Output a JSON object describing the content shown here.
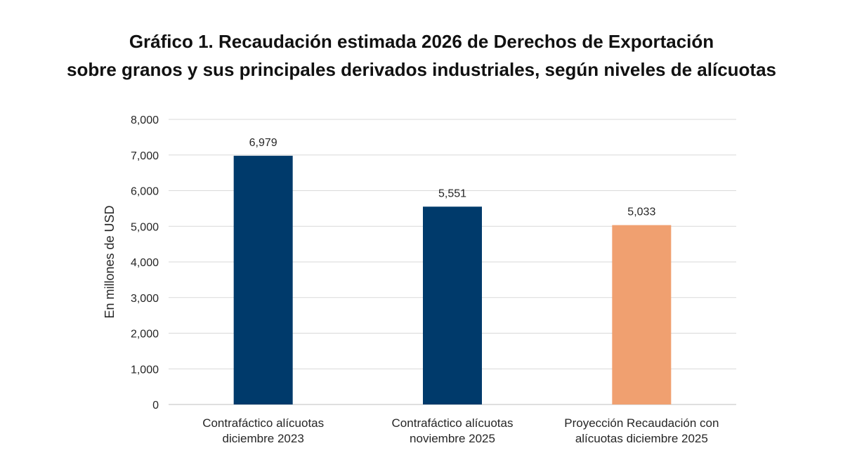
{
  "chart_data": {
    "type": "bar",
    "title_line1": "Gráfico 1. Recaudación estimada 2026 de Derechos de Exportación",
    "title_line2": "sobre granos y sus principales derivados industriales, según niveles de alícuotas",
    "ylabel": "En millones de USD",
    "xlabel": "",
    "ylim": [
      0,
      8000
    ],
    "yticks": [
      0,
      1000,
      2000,
      3000,
      4000,
      5000,
      6000,
      7000,
      8000
    ],
    "ytick_labels": [
      "0",
      "1,000",
      "2,000",
      "3,000",
      "4,000",
      "5,000",
      "6,000",
      "7,000",
      "8,000"
    ],
    "grid": true,
    "categories": [
      [
        "Contrafáctico alícuotas",
        "diciembre 2023"
      ],
      [
        "Contrafáctico alícuotas",
        "noviembre 2025"
      ],
      [
        "Proyección Recaudación con",
        "alícuotas diciembre 2025"
      ]
    ],
    "values": [
      6979,
      5551,
      5033
    ],
    "value_labels": [
      "6,979",
      "5,551",
      "5,033"
    ],
    "colors": [
      "#003a6b",
      "#003a6b",
      "#f0a070"
    ]
  }
}
